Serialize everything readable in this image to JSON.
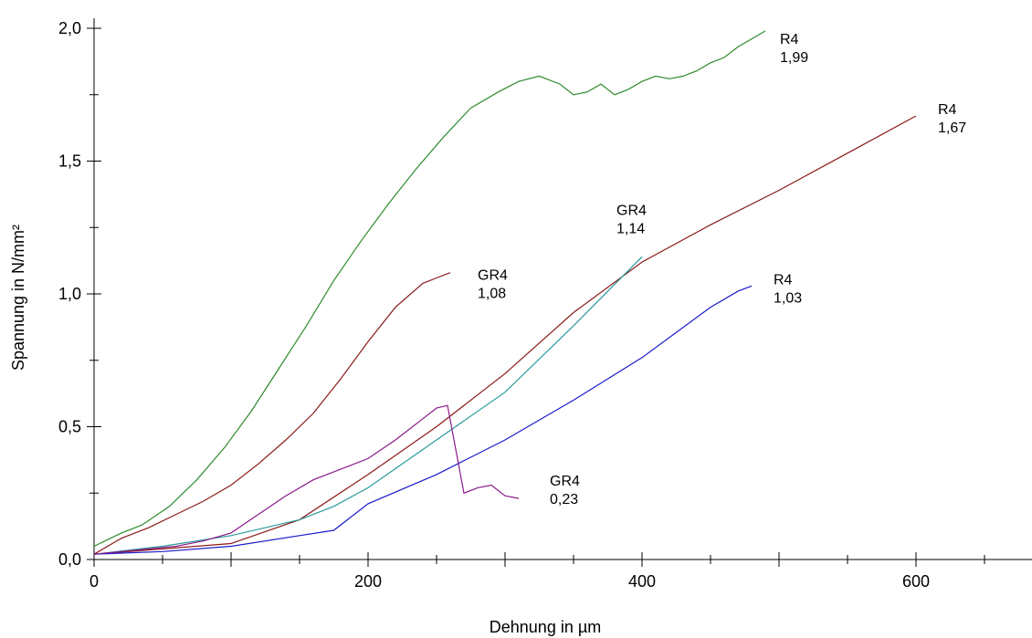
{
  "chart_data": {
    "type": "line",
    "title": "",
    "xlabel": "Dehnung in µm",
    "ylabel": "Spannung in N/mm²",
    "xlim": [
      0,
      680
    ],
    "ylim": [
      0,
      2.1
    ],
    "grid": false,
    "x_ticks": [
      {
        "value": 0,
        "label": "0"
      },
      {
        "value": 200,
        "label": "200"
      },
      {
        "value": 400,
        "label": "400"
      },
      {
        "value": 600,
        "label": "600"
      }
    ],
    "y_ticks": [
      {
        "value": 0.0,
        "label": "0,0"
      },
      {
        "value": 0.5,
        "label": "0,5"
      },
      {
        "value": 1.0,
        "label": "1,0"
      },
      {
        "value": 1.5,
        "label": "1,5"
      },
      {
        "value": 2.0,
        "label": "2,0"
      }
    ],
    "series": [
      {
        "color": "#2e8b2e",
        "x": [
          0,
          20,
          35,
          55,
          75,
          95,
          115,
          135,
          155,
          175,
          195,
          215,
          235,
          255,
          275,
          295,
          310,
          325,
          340,
          350,
          360,
          370,
          380,
          390,
          400,
          410,
          420,
          430,
          440,
          450,
          460,
          470,
          480,
          490
        ],
        "y": [
          0.05,
          0.1,
          0.13,
          0.2,
          0.3,
          0.42,
          0.56,
          0.72,
          0.88,
          1.05,
          1.2,
          1.34,
          1.47,
          1.59,
          1.7,
          1.76,
          1.8,
          1.82,
          1.79,
          1.75,
          1.76,
          1.79,
          1.75,
          1.77,
          1.8,
          1.82,
          1.81,
          1.82,
          1.84,
          1.87,
          1.89,
          1.93,
          1.96,
          1.99
        ],
        "annotation": {
          "name": "R4",
          "value": "1,99"
        }
      },
      {
        "color": "#8b1a1a",
        "x": [
          0,
          20,
          40,
          60,
          80,
          100,
          120,
          140,
          160,
          180,
          200,
          220,
          240,
          250,
          260
        ],
        "y": [
          0.02,
          0.08,
          0.12,
          0.17,
          0.22,
          0.28,
          0.36,
          0.45,
          0.55,
          0.68,
          0.82,
          0.95,
          1.04,
          1.06,
          1.08
        ],
        "annotation": {
          "name": "GR4",
          "value": "1,08"
        }
      },
      {
        "color": "#8b1a1a",
        "x": [
          0,
          50,
          100,
          150,
          200,
          250,
          300,
          350,
          400,
          450,
          500,
          550,
          600
        ],
        "y": [
          0.02,
          0.04,
          0.06,
          0.15,
          0.32,
          0.5,
          0.7,
          0.93,
          1.12,
          1.26,
          1.39,
          1.53,
          1.67
        ],
        "annotation": {
          "name": "R4",
          "value": "1,67"
        }
      },
      {
        "color": "#2a9a9a",
        "x": [
          0,
          50,
          100,
          150,
          175,
          200,
          250,
          300,
          350,
          400
        ],
        "y": [
          0.02,
          0.05,
          0.09,
          0.15,
          0.2,
          0.27,
          0.45,
          0.63,
          0.88,
          1.14
        ],
        "annotation": {
          "name": "GR4",
          "value": "1,14"
        }
      },
      {
        "color": "#1a1acc",
        "x": [
          0,
          50,
          100,
          150,
          175,
          200,
          250,
          300,
          350,
          400,
          450,
          470,
          480
        ],
        "y": [
          0.02,
          0.03,
          0.05,
          0.09,
          0.11,
          0.21,
          0.32,
          0.45,
          0.6,
          0.76,
          0.95,
          1.01,
          1.03
        ],
        "annotation": {
          "name": "R4",
          "value": "1,03"
        }
      },
      {
        "color": "#8b1a8b",
        "x": [
          0,
          20,
          40,
          60,
          80,
          100,
          120,
          140,
          160,
          180,
          200,
          220,
          230,
          240,
          250,
          258,
          270,
          280,
          290,
          300,
          310
        ],
        "y": [
          0.02,
          0.03,
          0.04,
          0.05,
          0.07,
          0.1,
          0.17,
          0.24,
          0.3,
          0.34,
          0.38,
          0.45,
          0.49,
          0.53,
          0.57,
          0.58,
          0.25,
          0.27,
          0.28,
          0.24,
          0.23
        ],
        "annotation": {
          "name": "GR4",
          "value": "0,23"
        }
      }
    ]
  }
}
